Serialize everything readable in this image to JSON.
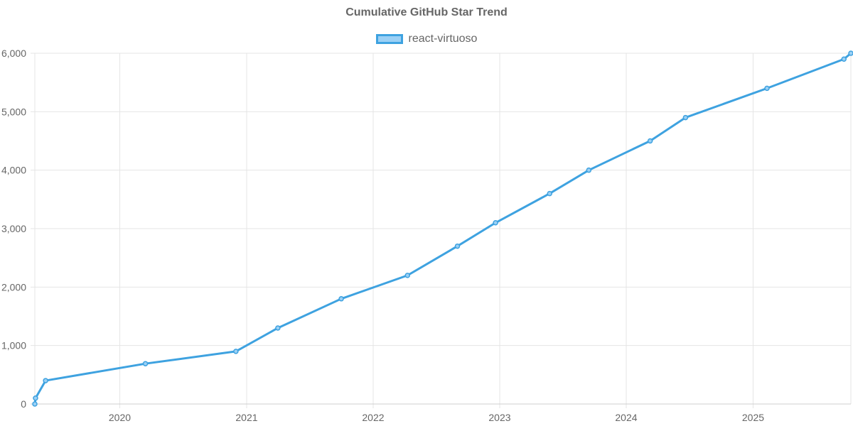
{
  "chart_data": {
    "type": "line",
    "title": "Cumulative GitHub Star Trend",
    "xlabel": "",
    "ylabel": "",
    "x_axis_type": "time",
    "xlim": [
      "2019-05-01",
      "2025-10-10"
    ],
    "ylim": [
      0,
      6000
    ],
    "y_ticks": [
      0,
      1000,
      2000,
      3000,
      4000,
      5000,
      6000
    ],
    "y_tick_labels": [
      "0",
      "1,000",
      "2,000",
      "3,000",
      "4,000",
      "5,000",
      "6,000"
    ],
    "x_ticks": [
      "2020-01-01",
      "2021-01-01",
      "2022-01-01",
      "2023-01-01",
      "2024-01-01",
      "2025-01-01"
    ],
    "x_tick_labels": [
      "2020",
      "2021",
      "2022",
      "2023",
      "2024",
      "2025"
    ],
    "grid": true,
    "legend_position": "top-center",
    "series": [
      {
        "name": "react-virtuoso",
        "color": "#3ea2e0",
        "fill": "#9bd0f5",
        "points": [
          {
            "x": "2019-05-01",
            "y": 0
          },
          {
            "x": "2019-05-03",
            "y": 100
          },
          {
            "x": "2019-06-01",
            "y": 400
          },
          {
            "x": "2020-03-15",
            "y": 690
          },
          {
            "x": "2020-12-01",
            "y": 900
          },
          {
            "x": "2021-04-01",
            "y": 1300
          },
          {
            "x": "2021-10-01",
            "y": 1800
          },
          {
            "x": "2022-04-10",
            "y": 2200
          },
          {
            "x": "2022-09-01",
            "y": 2700
          },
          {
            "x": "2022-12-20",
            "y": 3100
          },
          {
            "x": "2023-05-25",
            "y": 3600
          },
          {
            "x": "2023-09-15",
            "y": 4000
          },
          {
            "x": "2024-03-10",
            "y": 4500
          },
          {
            "x": "2024-06-20",
            "y": 4900
          },
          {
            "x": "2025-02-10",
            "y": 5400
          },
          {
            "x": "2025-09-20",
            "y": 5900
          },
          {
            "x": "2025-10-10",
            "y": 6000
          }
        ]
      }
    ]
  }
}
